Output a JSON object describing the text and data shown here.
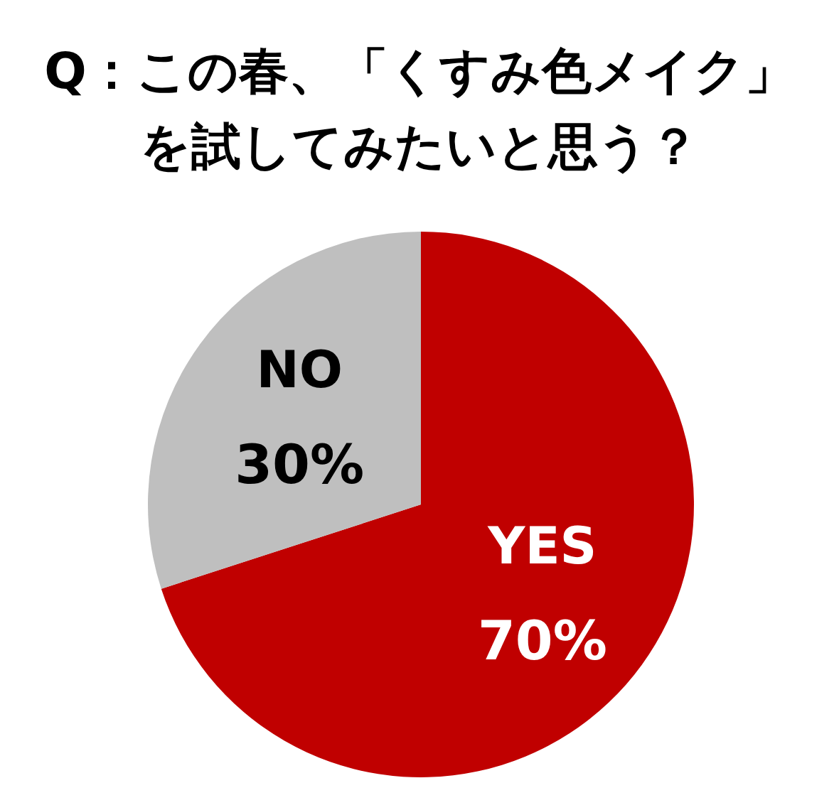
{
  "chart_data": {
    "type": "pie",
    "title": "Q：この春、「くすみ色メイク」を試してみたいと思う？",
    "categories": [
      "YES",
      "NO"
    ],
    "values": [
      70,
      30
    ],
    "colors": [
      "#c00000",
      "#bfbfbf"
    ],
    "value_labels": [
      "70%",
      "30%"
    ]
  }
}
